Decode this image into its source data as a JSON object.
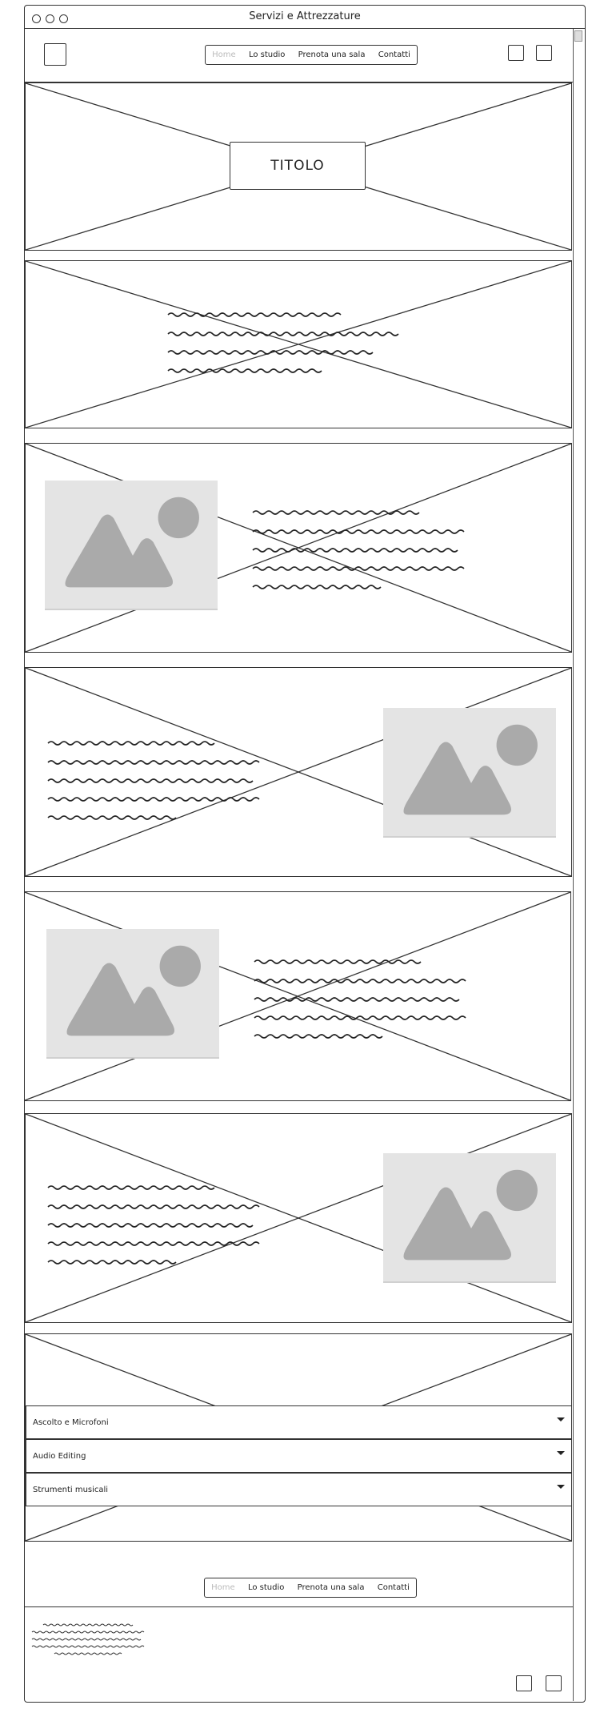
{
  "window": {
    "title": "Servizi e Attrezzature"
  },
  "icons": {
    "logo": "square-icon",
    "header_right_1": "square-icon",
    "header_right_2": "square-icon",
    "footer_1": "square-icon",
    "footer_2": "square-icon",
    "image_placeholder": "image-icon",
    "accordion_toggle": "caret-down-icon"
  },
  "nav": {
    "items": [
      "Home",
      "Lo studio",
      "Prenota una sala",
      "Contatti"
    ],
    "active": "Home"
  },
  "hero": {
    "title": "TITOLO"
  },
  "accordion": {
    "items": [
      "Ascolto e Microfoni",
      "Audio Editing",
      "Strumenti musicali"
    ]
  },
  "footer_nav": {
    "items": [
      "Home",
      "Lo studio",
      "Prenota una sala",
      "Contatti"
    ]
  },
  "colors": {
    "stroke": "#333333",
    "placeholder_bg": "#e4e4e4",
    "placeholder_shape": "#aaaaaa",
    "nav_active": "#bbbbbb"
  }
}
